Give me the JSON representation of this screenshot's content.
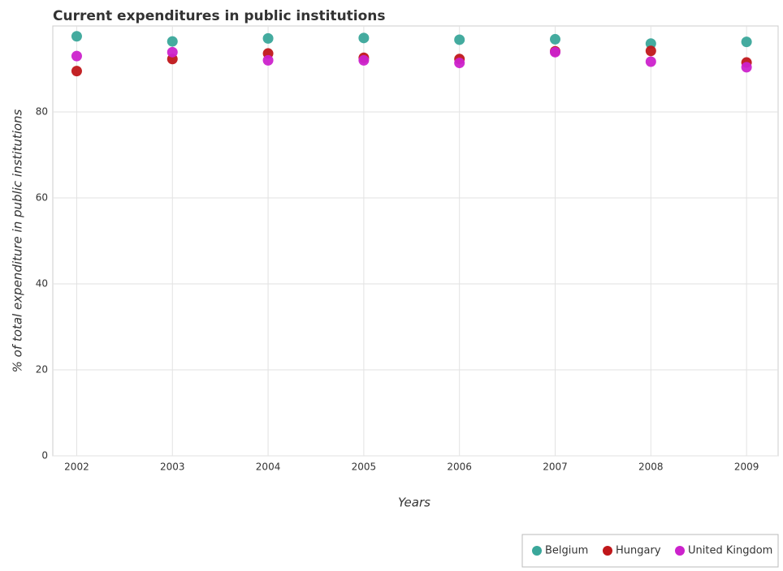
{
  "chart_data": {
    "type": "scatter",
    "title": "Current expenditures in public institutions",
    "x_label": "Years",
    "y_label": "% of total expenditure in public institutions",
    "x": [
      2002,
      2003,
      2004,
      2005,
      2006,
      2007,
      2008,
      2009
    ],
    "series": [
      {
        "name": "Belgium",
        "color": "#3aa79a",
        "values": [
          97.6,
          96.4,
          97.1,
          97.2,
          96.8,
          96.9,
          95.9,
          96.3
        ]
      },
      {
        "name": "Hungary",
        "color": "#c0171a",
        "values": [
          89.5,
          92.3,
          93.6,
          92.6,
          92.3,
          94.1,
          94.2,
          91.5
        ]
      },
      {
        "name": "United Kingdom",
        "color": "#cc22cc",
        "values": [
          93.0,
          93.9,
          92.0,
          92.0,
          91.4,
          93.9,
          91.7,
          90.4
        ]
      }
    ],
    "xlim": [
      2001.75,
      2009.33
    ],
    "xticks": [
      2002,
      2003,
      2004,
      2005,
      2006,
      2007,
      2008,
      2009
    ],
    "ylim": [
      0,
      100
    ],
    "yticks": [
      0,
      20,
      40,
      60,
      80
    ],
    "grid": true,
    "legend": "bottom-right"
  }
}
